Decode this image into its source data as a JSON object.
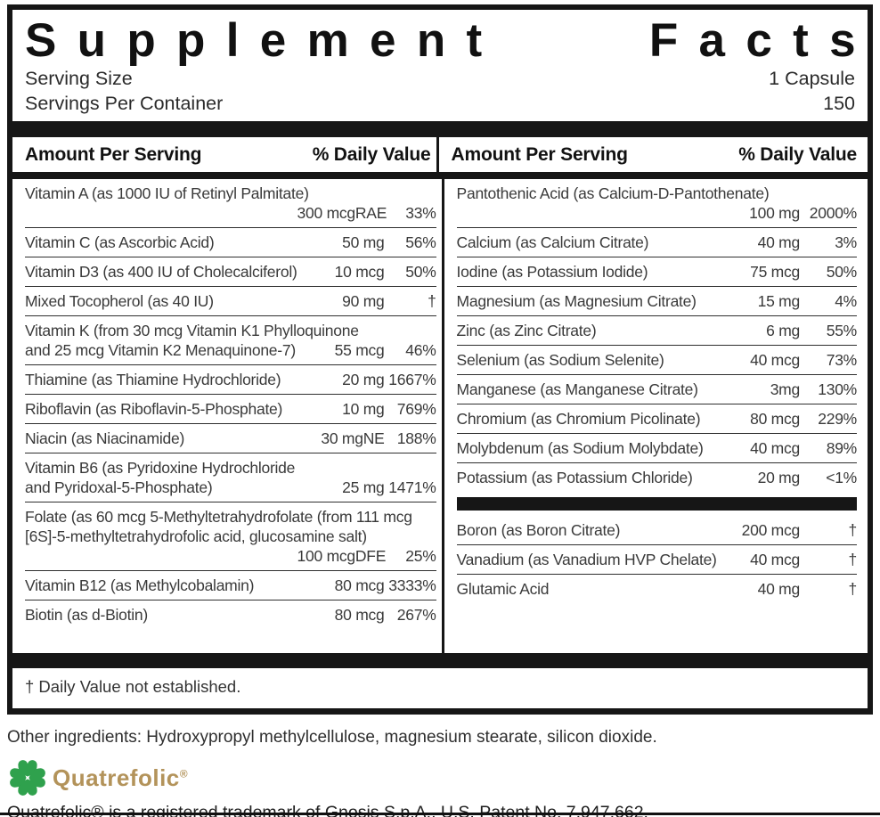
{
  "title": "Supplement Facts",
  "serving": {
    "size_label": "Serving Size",
    "size_value": "1 Capsule",
    "per_container_label": "Servings Per Container",
    "per_container_value": "150"
  },
  "table": {
    "amount_header": "Amount Per Serving",
    "dv_header": "% Daily Value",
    "left_sections": [
      [
        {
          "name_lines": [
            "Vitamin A (as 1000 IU of Retinyl Palmitate)"
          ],
          "amount": "300 mcgRAE",
          "dv": "33%",
          "amount_position": "below"
        },
        {
          "name_lines": [
            "Vitamin C (as Ascorbic Acid)"
          ],
          "amount": "50 mg",
          "dv": "56%",
          "amount_position": "inline"
        },
        {
          "name_lines": [
            "Vitamin D3 (as 400 IU of Cholecalciferol)"
          ],
          "amount": "10 mcg",
          "dv": "50%",
          "amount_position": "inline"
        },
        {
          "name_lines": [
            "Mixed Tocopherol (as 40 IU)"
          ],
          "amount": "90 mg",
          "dv": "†",
          "amount_position": "inline"
        },
        {
          "name_lines": [
            "Vitamin K (from 30 mcg Vitamin K1 Phylloquinone",
            "and 25 mcg Vitamin K2 Menaquinone-7)"
          ],
          "amount": "55 mcg",
          "dv": "46%",
          "amount_position": "inline"
        },
        {
          "name_lines": [
            "Thiamine (as Thiamine Hydrochloride)"
          ],
          "amount": "20 mg",
          "dv": "1667%",
          "amount_position": "inline"
        },
        {
          "name_lines": [
            "Riboflavin (as Riboflavin-5-Phosphate)"
          ],
          "amount": "10 mg",
          "dv": "769%",
          "amount_position": "inline"
        },
        {
          "name_lines": [
            "Niacin (as Niacinamide)"
          ],
          "amount": "30 mgNE",
          "dv": "188%",
          "amount_position": "inline"
        },
        {
          "name_lines": [
            "Vitamin B6 (as Pyridoxine Hydrochloride",
            "and Pyridoxal-5-Phosphate)"
          ],
          "amount": "25 mg",
          "dv": "1471%",
          "amount_position": "inline"
        },
        {
          "name_lines": [
            "Folate (as 60 mcg 5-Methyltetrahydrofolate (from 111 mcg",
            "[6S]-5-methyltetrahydrofolic acid, glucosamine salt)"
          ],
          "amount": "100 mcgDFE",
          "dv": "25%",
          "amount_position": "below"
        },
        {
          "name_lines": [
            "Vitamin B12 (as Methylcobalamin)"
          ],
          "amount": "80 mcg",
          "dv": "3333%",
          "amount_position": "inline"
        },
        {
          "name_lines": [
            "Biotin (as d-Biotin)"
          ],
          "amount": "80 mcg",
          "dv": "267%",
          "amount_position": "inline"
        }
      ]
    ],
    "right_sections": [
      [
        {
          "name_lines": [
            "Pantothenic Acid (as Calcium-D-Pantothenate)"
          ],
          "amount": "100 mg",
          "dv": "2000%",
          "amount_position": "below"
        },
        {
          "name_lines": [
            "Calcium (as Calcium Citrate)"
          ],
          "amount": "40 mg",
          "dv": "3%",
          "amount_position": "inline"
        },
        {
          "name_lines": [
            "Iodine (as Potassium Iodide)"
          ],
          "amount": "75 mcg",
          "dv": "50%",
          "amount_position": "inline"
        },
        {
          "name_lines": [
            "Magnesium (as Magnesium Citrate)"
          ],
          "amount": "15 mg",
          "dv": "4%",
          "amount_position": "inline"
        },
        {
          "name_lines": [
            "Zinc (as Zinc Citrate)"
          ],
          "amount": "6 mg",
          "dv": "55%",
          "amount_position": "inline"
        },
        {
          "name_lines": [
            "Selenium (as Sodium Selenite)"
          ],
          "amount": "40 mcg",
          "dv": "73%",
          "amount_position": "inline"
        },
        {
          "name_lines": [
            "Manganese (as Manganese Citrate)"
          ],
          "amount": "3mg",
          "dv": "130%",
          "amount_position": "inline"
        },
        {
          "name_lines": [
            "Chromium (as Chromium Picolinate)"
          ],
          "amount": "80 mcg",
          "dv": "229%",
          "amount_position": "inline"
        },
        {
          "name_lines": [
            "Molybdenum (as Sodium Molybdate)"
          ],
          "amount": "40 mcg",
          "dv": "89%",
          "amount_position": "inline"
        },
        {
          "name_lines": [
            "Potassium (as Potassium Chloride)"
          ],
          "amount": "20 mg",
          "dv": "<1%",
          "amount_position": "inline"
        }
      ],
      [
        {
          "name_lines": [
            "Boron (as Boron Citrate)"
          ],
          "amount": "200 mcg",
          "dv": "†",
          "amount_position": "inline"
        },
        {
          "name_lines": [
            "Vanadium (as Vanadium HVP Chelate)"
          ],
          "amount": "40 mcg",
          "dv": "†",
          "amount_position": "inline"
        },
        {
          "name_lines": [
            "Glutamic Acid"
          ],
          "amount": "40 mg",
          "dv": "†",
          "amount_position": "inline"
        }
      ]
    ],
    "footnote": "† Daily Value not established."
  },
  "other_ingredients": "Other ingredients: Hydroxypropyl methylcellulose, magnesium stearate, silicon dioxide.",
  "quatrefolic": {
    "name": "Quatrefolic",
    "reg": "®",
    "trademark": "Quatrefolic® is a registered trademark of Gnosis S.p.A., U.S. Patent No. 7,947,662."
  },
  "colors": {
    "text": "#3a3a3a",
    "bar": "#161616",
    "logo_gold": "#b3935a",
    "clover_dark": "#157f33",
    "clover_light": "#2fa14d"
  }
}
